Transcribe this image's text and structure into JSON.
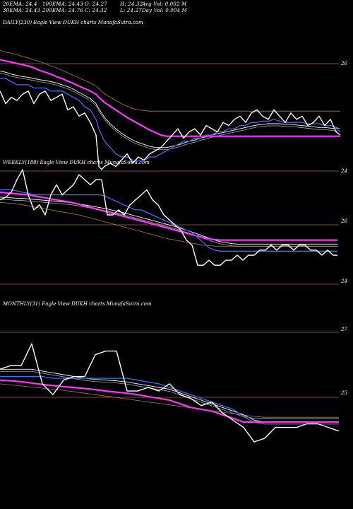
{
  "header": {
    "ema20": "20EMA: 24.4",
    "ema100": "100EMA: 24.43",
    "open": "O: 24.27",
    "high": "H: 24.32",
    "avgvol": "Avg Vol: 0.002  M",
    "ema30": "30EMA: 24.43",
    "ema200": "200EMA: 24.76",
    "close": "C: 24.32",
    "low": "L: 24.27",
    "dayvol": "Day Vol: 0.004 M"
  },
  "colors": {
    "background": "#000000",
    "price": "#ffffff",
    "ema_short": "#3a6cff",
    "ema_long": "#ff33ff",
    "ema_mid": "#ffffff",
    "ema_band": "#b07a3a",
    "level_line": "#b06a20"
  },
  "chart_data": [
    {
      "type": "line",
      "title": "DAILY(230) Eagle  View  DUKH charts MunafaSutra.com",
      "y_ticks": [
        "26",
        "24"
      ],
      "ylim": [
        23.6,
        26.1
      ],
      "x": [
        0,
        8,
        16,
        24,
        32,
        40,
        48,
        56,
        64,
        72,
        80,
        88,
        96,
        104,
        112,
        120,
        128,
        136,
        140,
        144,
        148,
        156,
        164,
        172,
        180,
        188,
        196,
        204,
        212,
        220,
        228,
        236,
        244,
        252,
        260,
        268,
        276,
        284,
        292,
        300,
        308,
        316,
        324,
        332,
        340,
        348,
        356,
        364,
        372,
        380,
        388,
        396,
        404,
        412,
        420,
        428,
        436,
        444,
        452,
        460,
        468,
        476,
        482
      ],
      "series": [
        {
          "values": [
            25.1,
            24.9,
            25.0,
            24.95,
            25.05,
            25.1,
            24.9,
            25.05,
            25.1,
            24.95,
            25.0,
            25.05,
            24.8,
            24.85,
            24.7,
            24.75,
            24.6,
            24.4,
            23.9,
            23.85,
            23.9,
            23.95,
            23.9,
            24.0,
            24.1,
            23.95,
            24.05,
            24.0,
            24.1,
            24.15,
            24.2,
            24.3,
            24.4,
            24.5,
            24.35,
            24.45,
            24.5,
            24.4,
            24.55,
            24.5,
            24.45,
            24.6,
            24.55,
            24.65,
            24.7,
            24.6,
            24.75,
            24.8,
            24.7,
            24.65,
            24.8,
            24.7,
            24.6,
            24.75,
            24.65,
            24.7,
            24.55,
            24.6,
            24.7,
            24.55,
            24.65,
            24.45,
            24.4
          ]
        },
        {
          "values": [
            25.3,
            25.3,
            25.25,
            25.2,
            25.2,
            25.2,
            25.15,
            25.15,
            25.15,
            25.1,
            25.1,
            25.1,
            25.05,
            25.0,
            24.95,
            24.85,
            24.8,
            24.65,
            24.5,
            24.4,
            24.3,
            24.2,
            24.1,
            24.05,
            24.05,
            24.0,
            24.0,
            24.0,
            24.05,
            24.05,
            24.1,
            24.15,
            24.2,
            24.25,
            24.3,
            24.3,
            24.35,
            24.35,
            24.4,
            24.4,
            24.45,
            24.45,
            24.5,
            24.5,
            24.55,
            24.55,
            24.6,
            24.6,
            24.62,
            24.62,
            24.65,
            24.62,
            24.6,
            24.6,
            24.6,
            24.6,
            24.58,
            24.58,
            24.58,
            24.55,
            24.55,
            24.52,
            24.5
          ]
        },
        {
          "values": [
            25.42,
            25.4,
            25.37,
            25.35,
            25.33,
            25.32,
            25.3,
            25.28,
            25.27,
            25.25,
            25.23,
            25.2,
            25.17,
            25.13,
            25.08,
            25.03,
            24.98,
            24.9,
            24.82,
            24.75,
            24.68,
            24.58,
            24.5,
            24.43,
            24.37,
            24.32,
            24.28,
            24.25,
            24.22,
            24.2,
            24.2,
            24.2,
            24.22,
            24.24,
            24.27,
            24.3,
            24.32,
            24.35,
            24.37,
            24.4,
            24.42,
            24.44,
            24.46,
            24.48,
            24.5,
            24.52,
            24.54,
            24.56,
            24.57,
            24.58,
            24.58,
            24.58,
            24.57,
            24.57,
            24.56,
            24.55,
            24.54,
            24.53,
            24.52,
            24.52,
            24.51,
            24.5,
            24.5
          ]
        },
        {
          "values": [
            25.6,
            25.58,
            25.56,
            25.54,
            25.52,
            25.5,
            25.47,
            25.43,
            25.4,
            25.37,
            25.33,
            25.3,
            25.26,
            25.22,
            25.18,
            25.14,
            25.1,
            25.05,
            25.0,
            24.96,
            24.92,
            24.86,
            24.8,
            24.74,
            24.68,
            24.63,
            24.58,
            24.53,
            24.48,
            24.44,
            24.4,
            24.38,
            24.38,
            24.38,
            24.38,
            24.38,
            24.38,
            24.38,
            24.38,
            24.38,
            24.38,
            24.38,
            24.38,
            24.38,
            24.38,
            24.38,
            24.38,
            24.38,
            24.38,
            24.38,
            24.38,
            24.38,
            24.38,
            24.38,
            24.38,
            24.38,
            24.38,
            24.38,
            24.38,
            24.38,
            24.38,
            24.38,
            24.38
          ]
        },
        {
          "values": [
            25.75,
            25.72,
            25.7,
            25.68,
            25.65,
            25.63,
            25.6,
            25.57,
            25.54,
            25.5,
            25.47,
            25.43,
            25.39,
            25.35,
            25.31,
            25.27,
            25.23,
            25.18,
            25.14,
            25.1,
            25.06,
            25.0,
            24.95,
            24.9,
            24.86,
            24.82,
            24.8,
            24.79,
            24.78,
            24.78,
            24.78,
            24.78,
            24.78,
            24.78,
            24.78,
            24.78,
            24.78,
            24.78,
            24.78,
            24.78,
            24.78,
            24.78,
            24.78,
            24.78,
            24.78,
            24.78,
            24.78,
            24.78,
            24.78,
            24.78,
            24.78,
            24.78,
            24.78,
            24.78,
            24.78,
            24.78,
            24.78,
            24.78,
            24.78,
            24.78,
            24.78,
            24.78,
            24.78
          ]
        }
      ]
    },
    {
      "type": "line",
      "title": "WEEKLY(188) Eagle  View  DUKH charts MunafaSutra.com",
      "y_ticks": [
        "26",
        "24"
      ],
      "ylim": [
        23.8,
        26.4
      ],
      "x": [
        0,
        8,
        16,
        24,
        32,
        40,
        48,
        56,
        64,
        72,
        80,
        88,
        96,
        104,
        112,
        120,
        128,
        136,
        144,
        152,
        160,
        168,
        176,
        184,
        192,
        200,
        208,
        216,
        224,
        232,
        240,
        248,
        256,
        264,
        272,
        280,
        288,
        296,
        304,
        312,
        320,
        328,
        336,
        344,
        352,
        360,
        368,
        376,
        384,
        392,
        400,
        408,
        416,
        424,
        432,
        440,
        448,
        456,
        464,
        472,
        478
      ],
      "series": [
        {
          "values": [
            25.8,
            25.85,
            25.95,
            26.2,
            26.4,
            25.9,
            25.6,
            25.7,
            25.5,
            25.9,
            26.1,
            25.9,
            26.0,
            26.1,
            26.3,
            26.2,
            26.1,
            26.2,
            26.2,
            25.5,
            25.5,
            25.6,
            25.5,
            25.7,
            25.8,
            25.9,
            26.0,
            25.8,
            25.7,
            25.5,
            25.4,
            25.3,
            25.2,
            25.0,
            24.9,
            24.5,
            24.5,
            24.6,
            24.5,
            24.5,
            24.6,
            24.6,
            24.7,
            24.6,
            24.7,
            24.7,
            24.8,
            24.8,
            24.9,
            24.8,
            24.9,
            24.9,
            24.8,
            24.9,
            24.9,
            24.8,
            24.8,
            24.7,
            24.8,
            24.7,
            24.7
          ]
        },
        {
          "values": [
            26.0,
            26.0,
            26.0,
            25.98,
            25.95,
            25.93,
            25.9,
            25.9,
            25.9,
            25.9,
            25.9,
            25.9,
            25.9,
            25.9,
            25.9,
            25.9,
            25.9,
            25.9,
            25.9,
            25.85,
            25.8,
            25.75,
            25.7,
            25.65,
            25.6,
            25.6,
            25.55,
            25.5,
            25.45,
            25.4,
            25.35,
            25.3,
            25.25,
            25.2,
            25.15,
            25.05,
            24.95,
            24.85,
            24.8,
            24.78,
            24.78,
            24.78,
            24.78,
            24.78,
            24.78,
            24.78,
            24.78,
            24.78,
            24.78,
            24.78,
            24.78,
            24.78,
            24.78,
            24.78,
            24.78,
            24.78,
            24.78,
            24.78,
            24.78,
            24.78,
            24.78
          ]
        },
        {
          "values": [
            25.85,
            25.85,
            25.84,
            25.83,
            25.83,
            25.82,
            25.81,
            25.8,
            25.79,
            25.78,
            25.77,
            25.76,
            25.75,
            25.74,
            25.72,
            25.7,
            25.68,
            25.66,
            25.64,
            25.62,
            25.59,
            25.57,
            25.54,
            25.51,
            25.48,
            25.45,
            25.42,
            25.39,
            25.36,
            25.33,
            25.3,
            25.27,
            25.23,
            25.2,
            25.16,
            25.12,
            25.08,
            25.04,
            25.0,
            24.97,
            24.95,
            24.93,
            24.92,
            24.92,
            24.92,
            24.92,
            24.92,
            24.92,
            24.92,
            24.92,
            24.92,
            24.92,
            24.92,
            24.92,
            24.92,
            24.92,
            24.92,
            24.92,
            24.92,
            24.92,
            24.92
          ]
        },
        {
          "values": [
            25.95,
            25.94,
            25.93,
            25.92,
            25.91,
            25.9,
            25.88,
            25.86,
            25.84,
            25.82,
            25.8,
            25.78,
            25.76,
            25.74,
            25.71,
            25.68,
            25.65,
            25.62,
            25.59,
            25.56,
            25.53,
            25.5,
            25.47,
            25.44,
            25.41,
            25.38,
            25.35,
            25.32,
            25.29,
            25.26,
            25.23,
            25.2,
            25.17,
            25.14,
            25.11,
            25.08,
            25.05,
            25.03,
            25.01,
            25.0,
            25.0,
            25.0,
            25.0,
            25.0,
            25.0,
            25.0,
            25.0,
            25.0,
            25.0,
            25.0,
            25.0,
            25.0,
            25.0,
            25.0,
            25.0,
            25.0,
            25.0,
            25.0,
            25.0,
            25.0,
            25.0
          ]
        },
        {
          "values": [
            25.75,
            25.74,
            25.73,
            25.72,
            25.7,
            25.68,
            25.66,
            25.64,
            25.62,
            25.6,
            25.58,
            25.56,
            25.54,
            25.52,
            25.5,
            25.47,
            25.44,
            25.41,
            25.38,
            25.35,
            25.32,
            25.29,
            25.26,
            25.23,
            25.2,
            25.17,
            25.14,
            25.11,
            25.08,
            25.05,
            25.02,
            25.0,
            24.98,
            24.96,
            24.94,
            24.92,
            24.9,
            24.89,
            24.88,
            24.88,
            24.88,
            24.88,
            24.88,
            24.88,
            24.88,
            24.88,
            24.88,
            24.88,
            24.88,
            24.88,
            24.88,
            24.88,
            24.88,
            24.88,
            24.88,
            24.88,
            24.88,
            24.88,
            24.88,
            24.88,
            24.88
          ]
        }
      ]
    },
    {
      "type": "line",
      "title": "MONTHLY(31) Eagle  View  DUKH charts MunafaSutra.com",
      "y_ticks": [
        "27",
        "25"
      ],
      "ylim": [
        24.0,
        27.5
      ],
      "x": [
        0,
        15,
        30,
        45,
        60,
        75,
        90,
        105,
        120,
        135,
        150,
        165,
        180,
        195,
        210,
        225,
        240,
        255,
        270,
        285,
        300,
        315,
        330,
        345,
        360,
        375,
        390,
        405,
        420,
        435,
        450,
        465,
        480
      ],
      "series": [
        {
          "values": [
            25.9,
            26.0,
            26.0,
            26.6,
            25.5,
            25.2,
            25.6,
            25.7,
            25.7,
            26.3,
            26.4,
            26.4,
            25.3,
            25.3,
            25.4,
            25.3,
            25.5,
            25.2,
            25.1,
            24.9,
            25.0,
            24.7,
            24.5,
            24.3,
            23.9,
            24.0,
            24.3,
            24.3,
            24.3,
            24.4,
            24.4,
            24.3,
            24.2
          ]
        },
        {
          "values": [
            25.7,
            25.7,
            25.7,
            25.7,
            25.7,
            25.65,
            25.65,
            25.65,
            25.65,
            25.65,
            25.65,
            25.65,
            25.65,
            25.6,
            25.55,
            25.5,
            25.4,
            25.3,
            25.2,
            25.1,
            25.0,
            24.9,
            24.8,
            24.6,
            24.55,
            24.55,
            24.55,
            24.55,
            24.55,
            24.55,
            24.55,
            24.55,
            24.55
          ]
        },
        {
          "values": [
            25.9,
            25.9,
            25.9,
            25.9,
            25.85,
            25.8,
            25.75,
            25.7,
            25.65,
            25.62,
            25.6,
            25.58,
            25.55,
            25.5,
            25.45,
            25.4,
            25.35,
            25.25,
            25.15,
            25.05,
            24.95,
            24.85,
            24.75,
            24.65,
            24.5,
            24.45,
            24.45,
            24.45,
            24.45,
            24.45,
            24.45,
            24.45,
            24.45
          ]
        },
        {
          "values": [
            25.6,
            25.58,
            25.56,
            25.52,
            25.48,
            25.45,
            25.42,
            25.4,
            25.37,
            25.34,
            25.3,
            25.27,
            25.24,
            25.2,
            25.15,
            25.1,
            25.05,
            24.95,
            24.85,
            24.8,
            24.75,
            24.65,
            24.55,
            24.45,
            24.45,
            24.45,
            24.45,
            24.45,
            24.45,
            24.45,
            24.45,
            24.45,
            24.45
          ]
        },
        {
          "values": [
            25.5,
            25.47,
            25.44,
            25.41,
            25.38,
            25.35,
            25.32,
            25.28,
            25.24,
            25.2,
            25.16,
            25.12,
            25.08,
            25.04,
            25.0,
            24.96,
            24.92,
            24.88,
            24.84,
            24.8,
            24.76,
            24.72,
            24.68,
            24.64,
            24.6,
            24.58,
            24.58,
            24.58,
            24.58,
            24.58,
            24.58,
            24.58,
            24.58
          ]
        }
      ]
    }
  ]
}
